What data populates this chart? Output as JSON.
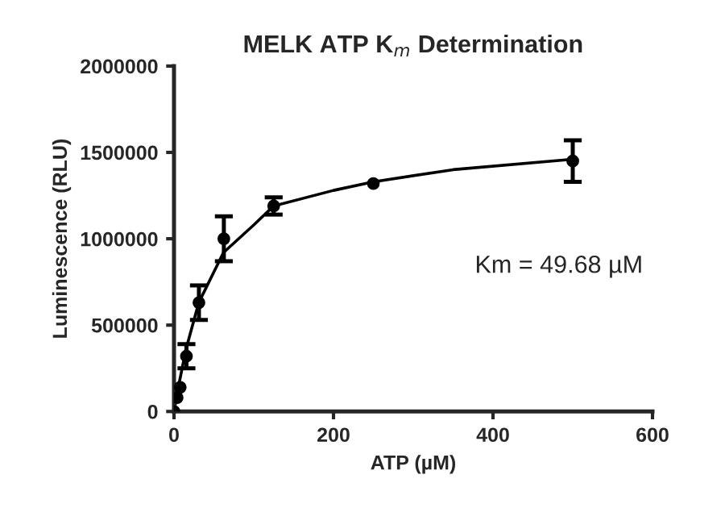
{
  "chart_data": {
    "type": "scatter",
    "title": "MELK ATP K$_{m}$ Determination",
    "xlabel": "ATP (µM)",
    "ylabel": "Luminescence (RLU)",
    "annotations": [
      "Km = 49.68 µM"
    ],
    "xlim": [
      0,
      600
    ],
    "ylim": [
      0,
      2000000
    ],
    "xticks": [
      0,
      200,
      400,
      600
    ],
    "yticks": [
      0,
      500000,
      1000000,
      1500000,
      2000000
    ],
    "grid": false,
    "legend": false,
    "series": [
      {
        "color": "#000000",
        "marker": "circle",
        "x": [
          0,
          3.9,
          7.8,
          15.6,
          31.25,
          62.5,
          125,
          250,
          500
        ],
        "values": [
          0,
          80000,
          140000,
          320000,
          630000,
          1000000,
          1190000,
          1320000,
          1450000
        ],
        "errors": [
          null,
          null,
          null,
          70000,
          100000,
          130000,
          50000,
          null,
          120000
        ]
      },
      {
        "type": "line",
        "color": "#000000",
        "marker": "none",
        "line_style": "solid",
        "x": [
          0,
          5,
          15,
          31,
          62,
          100,
          125,
          200,
          250,
          350,
          500
        ],
        "values": [
          0,
          130000,
          360000,
          630000,
          920000,
          1080000,
          1190000,
          1280000,
          1330000,
          1400000,
          1460000
        ]
      }
    ]
  }
}
